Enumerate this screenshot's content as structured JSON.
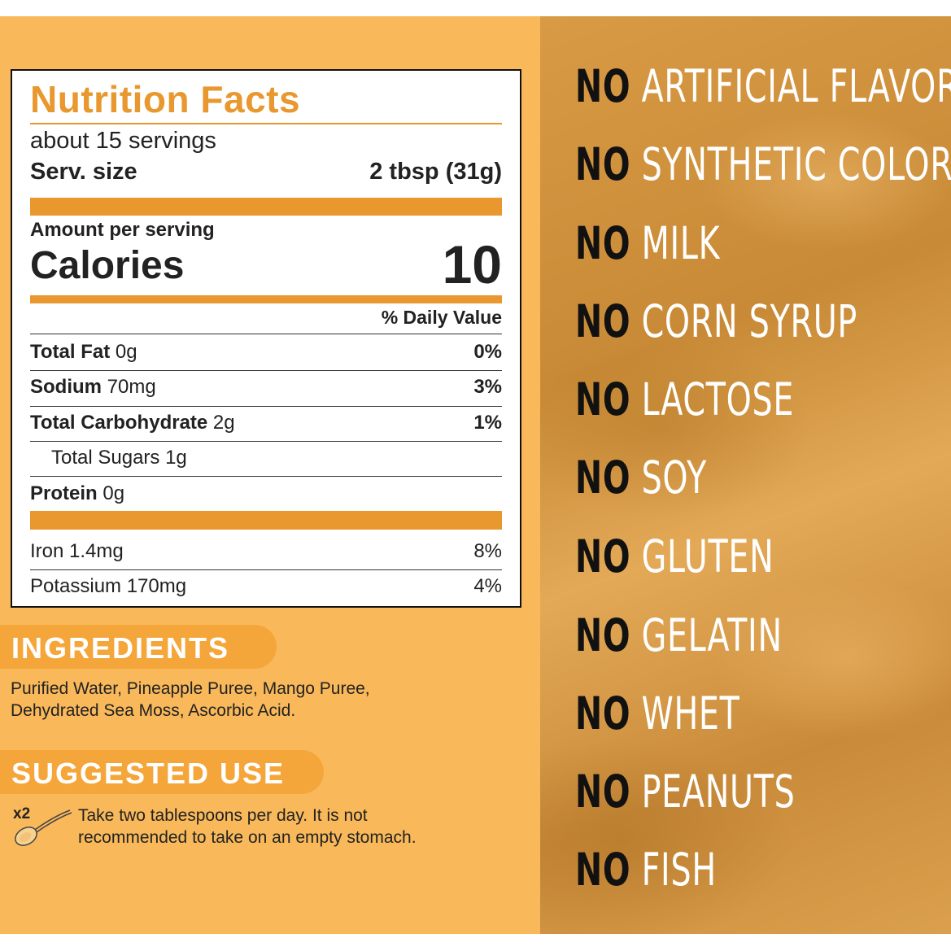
{
  "nutrition": {
    "title": "Nutrition Facts",
    "servings": "about 15 servings",
    "serv_size_label": "Serv. size",
    "serv_size_value": "2 tbsp (31g)",
    "amount_per_serving": "Amount per serving",
    "calories_label": "Calories",
    "calories_value": "10",
    "dv_header": "% Daily Value",
    "rows": [
      {
        "name": "Total Fat",
        "amount": " 0g",
        "dv": "0%"
      },
      {
        "name": "Sodium",
        "amount": " 70mg",
        "dv": "3%"
      },
      {
        "name": "Total Carbohydrate",
        "amount": " 2g",
        "dv": "1%"
      },
      {
        "name": "",
        "amount": "Total Sugars 1g",
        "dv": ""
      },
      {
        "name": "Protein",
        "amount": " 0g",
        "dv": ""
      }
    ],
    "minerals": [
      {
        "label": "Iron 1.4mg",
        "dv": "8%"
      },
      {
        "label": "Potassium 170mg",
        "dv": "4%"
      }
    ]
  },
  "ingredients": {
    "heading": "INGREDIENTS",
    "line1": "Purified Water, Pineapple Puree, Mango Puree,",
    "line2": "Dehydrated Sea Moss, Ascorbic Acid."
  },
  "suggested_use": {
    "heading": "SUGGESTED USE",
    "multiplier": "x2",
    "line1": "Take two tablespoons per day. It is not",
    "line2": "recommended to take on an empty stomach."
  },
  "claims": {
    "prefix": "NO",
    "items": [
      "ARTIFICIAL FLAVORS",
      "SYNTHETIC COLORS",
      "MILK",
      "CORN SYRUP",
      "LACTOSE",
      "SOY",
      "GLUTEN",
      "GELATIN",
      "WHET",
      "PEANUTS",
      "FISH"
    ]
  },
  "colors": {
    "accent": "#e8982e",
    "left_background": "#f9b95a",
    "pill": "#f5a63a"
  }
}
